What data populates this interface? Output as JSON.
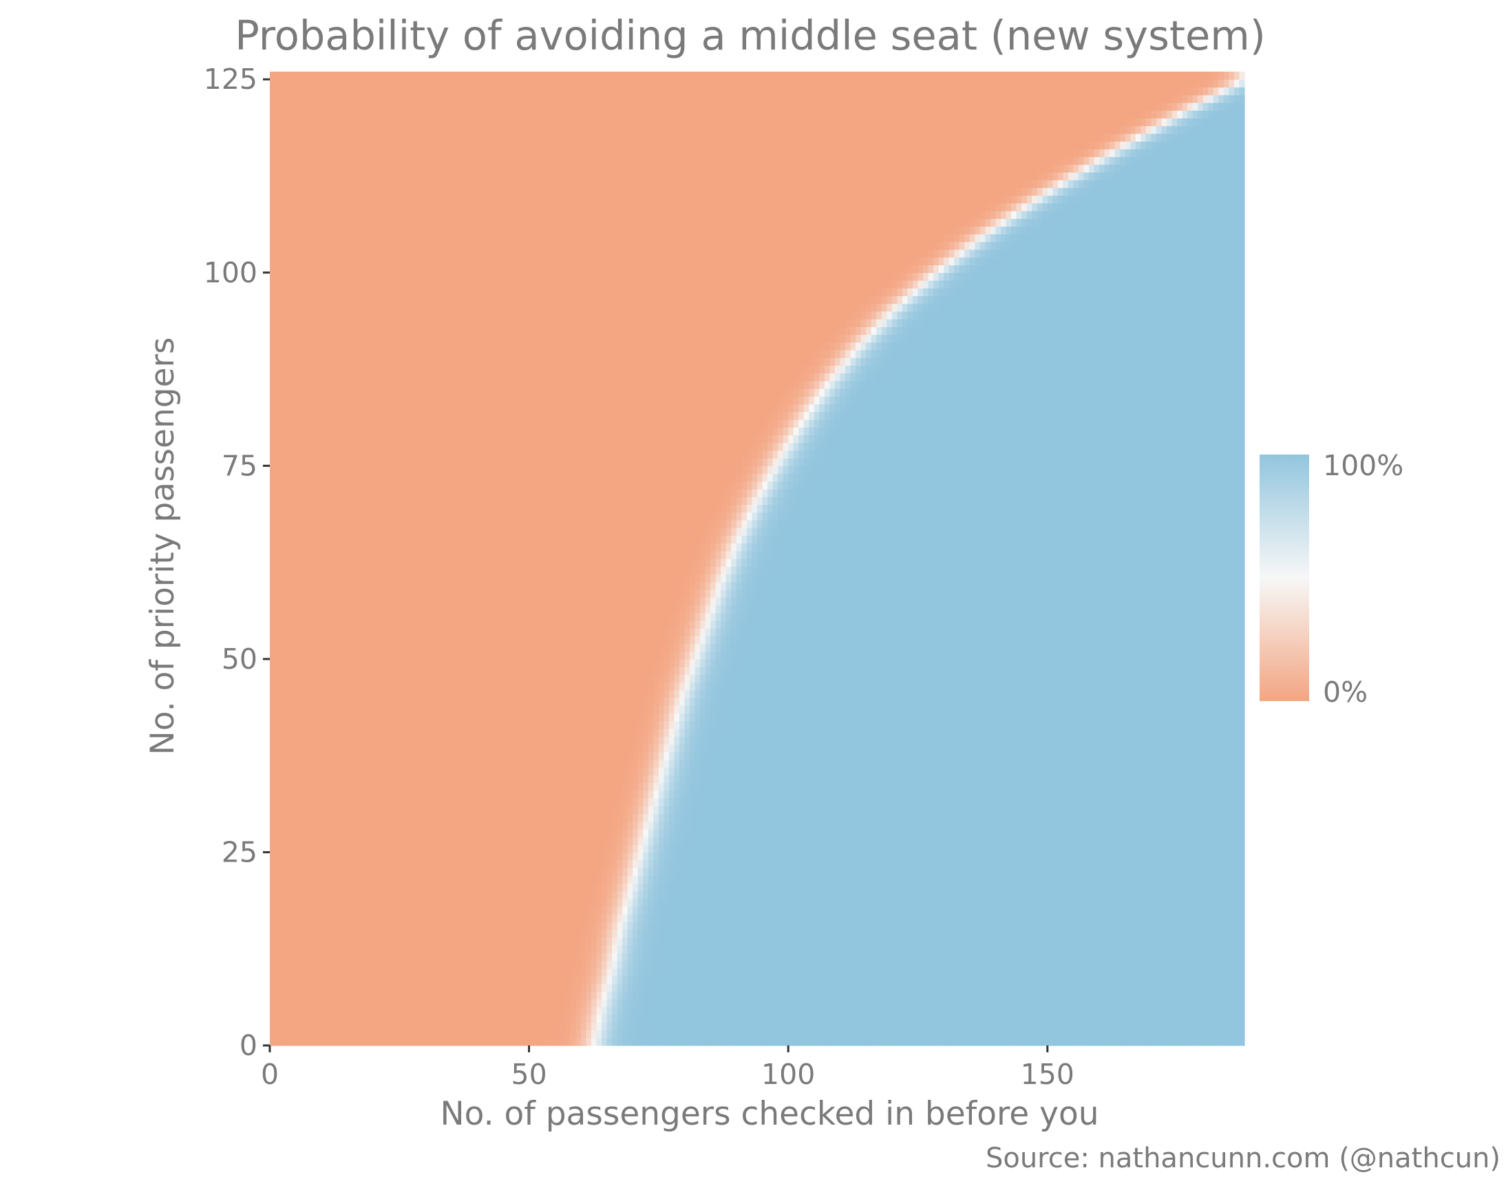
{
  "chart_data": {
    "type": "heatmap",
    "title": "Probability of avoiding a middle seat (new system)",
    "xlabel": "No. of passengers checked in before you",
    "ylabel": "No. of priority passengers",
    "xlim": [
      0,
      188
    ],
    "ylim": [
      0,
      126
    ],
    "x_ticks": [
      0,
      50,
      100,
      150
    ],
    "y_ticks": [
      0,
      25,
      50,
      75,
      100,
      125
    ],
    "x_tick_labels": [
      "0",
      "50",
      "100",
      "150"
    ],
    "y_tick_labels": [
      "0",
      "25",
      "50",
      "75",
      "100",
      "125"
    ],
    "grid": false,
    "value_range": [
      0,
      1
    ],
    "boundary_x_at_y": [
      [
        0,
        62.5
      ],
      [
        5,
        64
      ],
      [
        10,
        66
      ],
      [
        15,
        67.5
      ],
      [
        20,
        69.5
      ],
      [
        25,
        71.5
      ],
      [
        30,
        73.5
      ],
      [
        35,
        75.5
      ],
      [
        40,
        77.5
      ],
      [
        45,
        79.5
      ],
      [
        50,
        82
      ],
      [
        55,
        84.5
      ],
      [
        60,
        87
      ],
      [
        65,
        90
      ],
      [
        70,
        93.5
      ],
      [
        75,
        97.5
      ],
      [
        80,
        102
      ],
      [
        85,
        107
      ],
      [
        90,
        113
      ],
      [
        95,
        120
      ],
      [
        100,
        128.5
      ],
      [
        105,
        138
      ],
      [
        110,
        149
      ],
      [
        115,
        161
      ],
      [
        120,
        174
      ],
      [
        125,
        188
      ]
    ],
    "transition_width": 3.5,
    "colors": {
      "low": "#f4a582",
      "mid": "#f7f7f7",
      "high": "#92c5de"
    },
    "legend": {
      "position": "right",
      "labels": [
        "100%",
        "0%"
      ],
      "values": [
        1,
        0
      ]
    },
    "source": "Source: nathancunn.com (@nathcun)"
  }
}
